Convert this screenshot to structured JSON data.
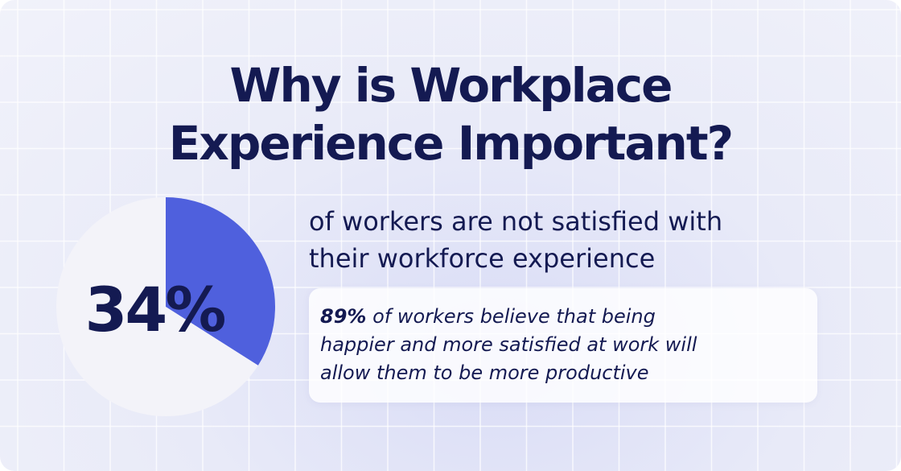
{
  "title_lines": [
    "Why is Workplace",
    "Experience Important?"
  ],
  "chart_data": {
    "type": "pie",
    "title": "",
    "center_label": "34%",
    "slices": [
      {
        "label": "not satisfied",
        "value": 34,
        "color": "#4f60dd"
      },
      {
        "label": "",
        "value": 66,
        "color": "#f3f3f9"
      }
    ]
  },
  "headline_lines": [
    "of workers are not satisfied with",
    "their workforce experience"
  ],
  "quote": {
    "stat": "89%",
    "line1_rest": " of workers believe that being",
    "line2": "happier and more satisfied at work will",
    "line3": "allow them to be more productive"
  },
  "colors": {
    "accent": "#4f60dd",
    "text": "#141a52",
    "grid": "#ffffff"
  }
}
